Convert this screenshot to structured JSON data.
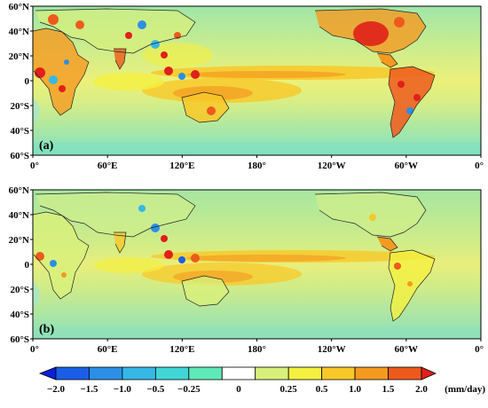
{
  "figure": {
    "panels": [
      {
        "label": "(a)",
        "lat_ticks": [
          "60°N",
          "40°N",
          "20°N",
          "0",
          "20°S",
          "40°S",
          "60°S"
        ],
        "lon_ticks": [
          "0°",
          "60°E",
          "120°E",
          "180°",
          "120°W",
          "60°W",
          "0°"
        ]
      },
      {
        "label": "(b)",
        "lat_ticks": [
          "60°N",
          "40°N",
          "20°N",
          "0",
          "20°S",
          "40°S",
          "60°S"
        ],
        "lon_ticks": [
          "0°",
          "60°E",
          "120°E",
          "180°",
          "120°W",
          "60°W",
          "0°"
        ]
      }
    ],
    "colorbar": {
      "levels": [
        "−2.0",
        "−1.5",
        "−1.0",
        "−0.5",
        "−0.25",
        "0",
        "0.25",
        "0.5",
        "1.0",
        "1.5",
        "2.0"
      ],
      "colors": [
        "#0b20d8",
        "#1a5ee8",
        "#2b8fe6",
        "#36b8e6",
        "#40d6d6",
        "#5fe8b8",
        "#ffffff",
        "#d8f07a",
        "#f4f040",
        "#f8c828",
        "#f59a20",
        "#ee5a1c",
        "#e0201a"
      ],
      "unit": "(mm/day)"
    }
  }
}
